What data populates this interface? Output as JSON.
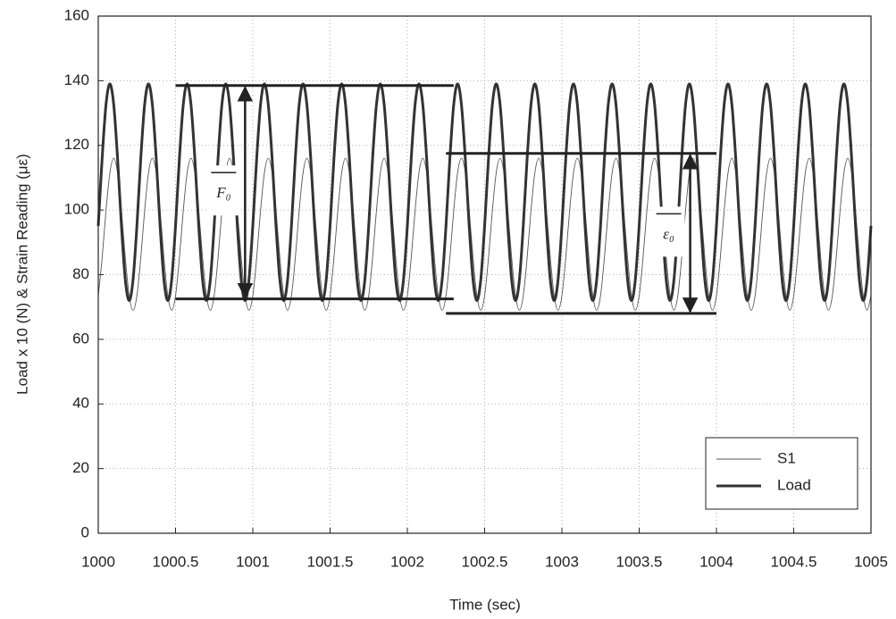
{
  "chart_data": {
    "type": "line",
    "xlabel": "Time (sec)",
    "ylabel": "Load x 10 (N) & Strain Reading (με)",
    "xlim": [
      1000,
      1005
    ],
    "ylim": [
      0,
      160
    ],
    "xticks": [
      1000,
      1000.5,
      1001,
      1001.5,
      1002,
      1002.5,
      1003,
      1003.5,
      1004,
      1004.5,
      1005
    ],
    "yticks": [
      0,
      20,
      40,
      60,
      80,
      100,
      120,
      140,
      160
    ],
    "grid": true,
    "legend": "lower right",
    "x": [
      1000,
      1000.025,
      1000.05,
      1000.075,
      1000.1,
      1000.125,
      1000.15,
      1000.175,
      1000.2,
      1000.225,
      1000.25,
      1000.275,
      1000.3,
      1000.325,
      1000.35,
      1000.375,
      1000.4,
      1000.425,
      1000.45,
      1000.475,
      1000.5,
      1000.525,
      1000.55,
      1000.575,
      1000.6,
      1000.625,
      1000.65,
      1000.675,
      1000.7,
      1000.725,
      1000.75,
      1000.775,
      1000.8,
      1000.825,
      1000.85,
      1000.875,
      1000.9,
      1000.925,
      1000.95,
      1000.975,
      1001,
      1001.025,
      1001.05,
      1001.075,
      1001.1,
      1001.125,
      1001.15,
      1001.175,
      1001.2,
      1001.225,
      1001.25,
      1001.275,
      1001.3,
      1001.325,
      1001.35,
      1001.375,
      1001.4,
      1001.425,
      1001.45,
      1001.475,
      1001.5,
      1001.525,
      1001.55,
      1001.575,
      1001.6,
      1001.625,
      1001.65,
      1001.675,
      1001.7,
      1001.725,
      1001.75,
      1001.775,
      1001.8,
      1001.825,
      1001.85,
      1001.875,
      1001.9,
      1001.925,
      1001.95,
      1001.975,
      1002,
      1002.025,
      1002.05,
      1002.075,
      1002.1,
      1002.125,
      1002.15,
      1002.175,
      1002.2,
      1002.225,
      1002.25,
      1002.275,
      1002.3,
      1002.325,
      1002.35,
      1002.375,
      1002.4,
      1002.425,
      1002.45,
      1002.475,
      1002.5,
      1002.525,
      1002.55,
      1002.575,
      1002.6,
      1002.625,
      1002.65,
      1002.675,
      1002.7,
      1002.725,
      1002.75,
      1002.775,
      1002.8,
      1002.825,
      1002.85,
      1002.875,
      1002.9,
      1002.925,
      1002.95,
      1002.975,
      1003,
      1003.025,
      1003.05,
      1003.075,
      1003.1,
      1003.125,
      1003.15,
      1003.175,
      1003.2,
      1003.225,
      1003.25,
      1003.275,
      1003.3,
      1003.325,
      1003.35,
      1003.375,
      1003.4,
      1003.425,
      1003.45,
      1003.475,
      1003.5,
      1003.525,
      1003.55,
      1003.575,
      1003.6,
      1003.625,
      1003.65,
      1003.675,
      1003.7,
      1003.725,
      1003.75,
      1003.775,
      1003.8,
      1003.825,
      1003.85,
      1003.875,
      1003.9,
      1003.925,
      1003.95,
      1003.975,
      1004,
      1004.025,
      1004.05,
      1004.075,
      1004.1,
      1004.125,
      1004.15,
      1004.175,
      1004.2,
      1004.225,
      1004.25,
      1004.275,
      1004.3,
      1004.325,
      1004.35,
      1004.375,
      1004.4,
      1004.425,
      1004.45,
      1004.475,
      1004.5,
      1004.525,
      1004.55,
      1004.575,
      1004.6,
      1004.625,
      1004.65,
      1004.675,
      1004.7,
      1004.725,
      1004.75,
      1004.775,
      1004.8,
      1004.825,
      1004.85,
      1004.875,
      1004.9,
      1004.925,
      1004.95,
      1004.975,
      1005
    ],
    "series": [
      {
        "name": "S1",
        "color": "#555555",
        "width": 0.9,
        "values": [
          73.5,
          85.2,
          99.8,
          111.5,
          116,
          111.5,
          99.8,
          85.2,
          73.5,
          69,
          73.5,
          85.2,
          99.8,
          111.5,
          116,
          111.5,
          99.8,
          85.2,
          73.5,
          69,
          73.5,
          85.2,
          99.8,
          111.5,
          116,
          111.5,
          99.8,
          85.2,
          73.5,
          69,
          73.5,
          85.2,
          99.8,
          111.5,
          116,
          111.5,
          99.8,
          85.2,
          73.5,
          69,
          73.5,
          85.2,
          99.8,
          111.5,
          116,
          111.5,
          99.8,
          85.2,
          73.5,
          69,
          73.5,
          85.2,
          99.8,
          111.5,
          116,
          111.5,
          99.8,
          85.2,
          73.5,
          69,
          73.5,
          85.2,
          99.8,
          111.5,
          116,
          111.5,
          99.8,
          85.2,
          73.5,
          69,
          73.5,
          85.2,
          99.8,
          111.5,
          116,
          111.5,
          99.8,
          85.2,
          73.5,
          69,
          73.5,
          85.2,
          99.8,
          111.5,
          116,
          111.5,
          99.8,
          85.2,
          73.5,
          69,
          73.5,
          85.2,
          99.8,
          111.5,
          116,
          111.5,
          99.8,
          85.2,
          73.5,
          69,
          73.5,
          85.2,
          99.8,
          111.5,
          116,
          111.5,
          99.8,
          85.2,
          73.5,
          69,
          73.5,
          85.2,
          99.8,
          111.5,
          116,
          111.5,
          99.8,
          85.2,
          73.5,
          69,
          73.5,
          85.2,
          99.8,
          111.5,
          116,
          111.5,
          99.8,
          85.2,
          73.5,
          69,
          73.5,
          85.2,
          99.8,
          111.5,
          116,
          111.5,
          99.8,
          85.2,
          73.5,
          69,
          73.5,
          85.2,
          99.8,
          111.5,
          116,
          111.5,
          99.8,
          85.2,
          73.5,
          69,
          73.5,
          85.2,
          99.8,
          111.5,
          116,
          111.5,
          99.8,
          85.2,
          73.5,
          69,
          73.5,
          85.2,
          99.8,
          111.5,
          116,
          111.5,
          99.8,
          85.2,
          73.5,
          69,
          73.5,
          85.2,
          99.8,
          111.5,
          116,
          111.5,
          99.8,
          85.2,
          73.5,
          69,
          73.5,
          85.2,
          99.8,
          111.5,
          116,
          111.5,
          99.8,
          85.2,
          73.5,
          69,
          73.5,
          85.2,
          99.8,
          111.5,
          116,
          111.5,
          99.8,
          85.2,
          73.5,
          69,
          73.5
        ]
      },
      {
        "name": "Load",
        "color": "#333333",
        "width": 3,
        "values": [
          95.1,
          115.9,
          132.6,
          139,
          132.6,
          115.9,
          95.1,
          78.4,
          72,
          78.4,
          95.1,
          115.9,
          132.6,
          139,
          132.6,
          115.9,
          95.1,
          78.4,
          72,
          78.4,
          95.1,
          115.9,
          132.6,
          139,
          132.6,
          115.9,
          95.1,
          78.4,
          72,
          78.4,
          95.1,
          115.9,
          132.6,
          139,
          132.6,
          115.9,
          95.1,
          78.4,
          72,
          78.4,
          95.1,
          115.9,
          132.6,
          139,
          132.6,
          115.9,
          95.1,
          78.4,
          72,
          78.4,
          95.1,
          115.9,
          132.6,
          139,
          132.6,
          115.9,
          95.1,
          78.4,
          72,
          78.4,
          95.1,
          115.9,
          132.6,
          139,
          132.6,
          115.9,
          95.1,
          78.4,
          72,
          78.4,
          95.1,
          115.9,
          132.6,
          139,
          132.6,
          115.9,
          95.1,
          78.4,
          72,
          78.4,
          95.1,
          115.9,
          132.6,
          139,
          132.6,
          115.9,
          95.1,
          78.4,
          72,
          78.4,
          95.1,
          115.9,
          132.6,
          139,
          132.6,
          115.9,
          95.1,
          78.4,
          72,
          78.4,
          95.1,
          115.9,
          132.6,
          139,
          132.6,
          115.9,
          95.1,
          78.4,
          72,
          78.4,
          95.1,
          115.9,
          132.6,
          139,
          132.6,
          115.9,
          95.1,
          78.4,
          72,
          78.4,
          95.1,
          115.9,
          132.6,
          139,
          132.6,
          115.9,
          95.1,
          78.4,
          72,
          78.4,
          95.1,
          115.9,
          132.6,
          139,
          132.6,
          115.9,
          95.1,
          78.4,
          72,
          78.4,
          95.1,
          115.9,
          132.6,
          139,
          132.6,
          115.9,
          95.1,
          78.4,
          72,
          78.4,
          95.1,
          115.9,
          132.6,
          139,
          132.6,
          115.9,
          95.1,
          78.4,
          72,
          78.4,
          95.1,
          115.9,
          132.6,
          139,
          132.6,
          115.9,
          95.1,
          78.4,
          72,
          78.4,
          95.1,
          115.9,
          132.6,
          139,
          132.6,
          115.9,
          95.1,
          78.4,
          72,
          78.4,
          95.1,
          115.9,
          132.6,
          139,
          132.6,
          115.9,
          95.1,
          78.4,
          72,
          78.4,
          95.1,
          115.9,
          132.6,
          139,
          132.6,
          115.9,
          95.1,
          78.4,
          72,
          78.4,
          95.1
        ]
      }
    ],
    "annotations": [
      {
        "label": "F₀",
        "x": [
          1000.5,
          1002.3
        ],
        "y": [
          72.5,
          138.5
        ],
        "arrow_x": 1000.95
      },
      {
        "label": "ε₀",
        "x": [
          1002.25,
          1004
        ],
        "y": [
          68,
          117.5
        ],
        "arrow_x": 1003.83
      }
    ]
  }
}
